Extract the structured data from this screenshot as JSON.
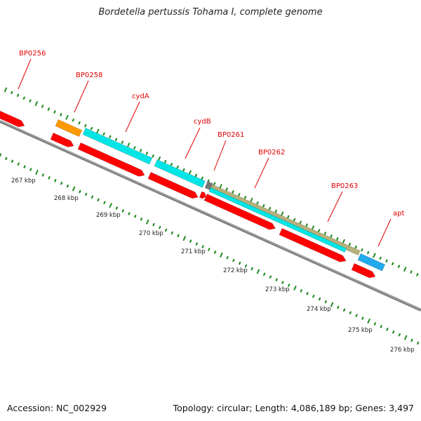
{
  "title": "Bordetella pertussis Tohama I, complete genome",
  "footer": {
    "accession": "Accession: NC_002929",
    "summary": "Topology: circular; Length: 4,086,189 bp; Genes: 3,497"
  },
  "colors": {
    "background": "#ffffff",
    "backbone": "#808080",
    "cds": "#ff0000",
    "gene_cyan": "#00e5e5",
    "gene_orange": "#ff9900",
    "gene_olive": "#b8b07a",
    "gene_gray": "#777777",
    "gene_blue": "#22aaee",
    "tick": "#228b22",
    "label": "#e00000"
  },
  "gene_labels": [
    "BP0256",
    "BP0258",
    "cydA",
    "cydB",
    "BP0261",
    "BP0262",
    "BP0263",
    "apt"
  ],
  "tick_labels": [
    "267 kbp",
    "268 kbp",
    "269 kbp",
    "270 kbp",
    "271 kbp",
    "272 kbp",
    "273 kbp",
    "274 kbp",
    "275 kbp",
    "276 kbp"
  ]
}
